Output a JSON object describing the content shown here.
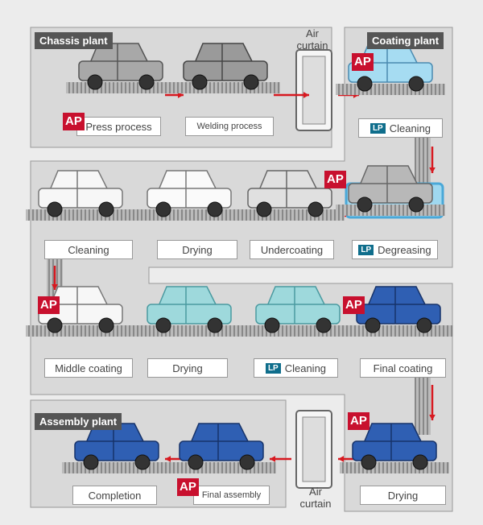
{
  "plants": {
    "chassis": "Chassis plant",
    "coating": "Coating plant",
    "assembly": "Assembly plant"
  },
  "air_curtain_labels": [
    "Air curtain",
    "Air curtain"
  ],
  "ap_badges": [
    "AP",
    "AP",
    "AP",
    "AP",
    "AP",
    "AP",
    "AP"
  ],
  "steps": [
    {
      "label": "Press process"
    },
    {
      "label": "Welding process"
    },
    {
      "label": "Cleaning",
      "badge": "LP"
    },
    {
      "label": "Cleaning"
    },
    {
      "label": "Drying"
    },
    {
      "label": "Undercoating"
    },
    {
      "label": "Degreasing",
      "badge": "LP"
    },
    {
      "label": "Middle coating"
    },
    {
      "label": "Drying"
    },
    {
      "label": "Cleaning",
      "badge": "LP"
    },
    {
      "label": "Final coating"
    },
    {
      "label": "Completion"
    },
    {
      "label": "Final assembly"
    },
    {
      "label": "Drying"
    }
  ]
}
